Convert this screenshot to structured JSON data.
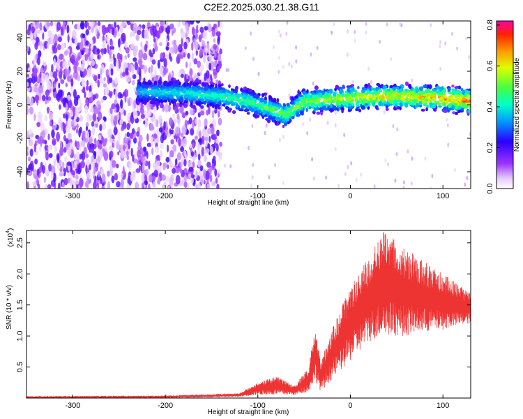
{
  "title": "C2E2.2025.030.21.38.G11",
  "chart_data": [
    {
      "type": "heatmap",
      "xlabel": "Height of straight line (km)",
      "ylabel": "Frequency (Hz)",
      "xlim": [
        -350,
        130
      ],
      "ylim": [
        -50,
        50
      ],
      "xticks": [
        -300,
        -200,
        -100,
        0,
        100
      ],
      "yticks": [
        -40,
        -20,
        0,
        20,
        40
      ],
      "colorbar": {
        "label": "Normalized spectral amplitude",
        "range": [
          0.0,
          0.82
        ],
        "ticks": [
          "0.0",
          "0.2",
          "0.4",
          "0.6",
          "0.8"
        ],
        "colormap": "rainbow"
      },
      "band_center_hz": [
        {
          "x": -230,
          "y": 8
        },
        {
          "x": -180,
          "y": 7
        },
        {
          "x": -140,
          "y": 5
        },
        {
          "x": -110,
          "y": 2
        },
        {
          "x": -90,
          "y": -2
        },
        {
          "x": -70,
          "y": -6
        },
        {
          "x": -50,
          "y": 2
        },
        {
          "x": 0,
          "y": 4
        },
        {
          "x": 50,
          "y": 5
        },
        {
          "x": 100,
          "y": 4
        },
        {
          "x": 130,
          "y": 2
        }
      ],
      "noise_region_x": [
        -350,
        -140
      ]
    },
    {
      "type": "line",
      "xlabel": "Height of straight line (km)",
      "ylabel": "SNR (10 * v/v)",
      "y_multiplier_label": "(x10",
      "y_multiplier_exp": "4",
      "xlim": [
        -350,
        130
      ],
      "ylim": [
        0,
        2.7
      ],
      "xticks": [
        -300,
        -200,
        -100,
        0,
        100
      ],
      "yticks": [
        "0.5",
        "1.0",
        "1.5",
        "2.0",
        "2.5"
      ],
      "series_color": "#ee3333",
      "envelope": [
        {
          "x": -350,
          "low": 0.0,
          "high": 0.03
        },
        {
          "x": -200,
          "low": 0.0,
          "high": 0.04
        },
        {
          "x": -120,
          "low": 0.02,
          "high": 0.08
        },
        {
          "x": -100,
          "low": 0.05,
          "high": 0.25
        },
        {
          "x": -80,
          "low": 0.05,
          "high": 0.35
        },
        {
          "x": -60,
          "low": 0.05,
          "high": 0.2
        },
        {
          "x": -45,
          "low": 0.1,
          "high": 0.5
        },
        {
          "x": -38,
          "low": 0.3,
          "high": 1.2
        },
        {
          "x": -32,
          "low": 0.1,
          "high": 0.6
        },
        {
          "x": -20,
          "low": 0.3,
          "high": 1.1
        },
        {
          "x": 0,
          "low": 0.6,
          "high": 1.8
        },
        {
          "x": 20,
          "low": 0.9,
          "high": 2.3
        },
        {
          "x": 35,
          "low": 1.0,
          "high": 2.7
        },
        {
          "x": 60,
          "low": 1.0,
          "high": 2.4
        },
        {
          "x": 100,
          "low": 1.1,
          "high": 2.0
        },
        {
          "x": 130,
          "low": 1.2,
          "high": 1.7
        }
      ]
    }
  ]
}
